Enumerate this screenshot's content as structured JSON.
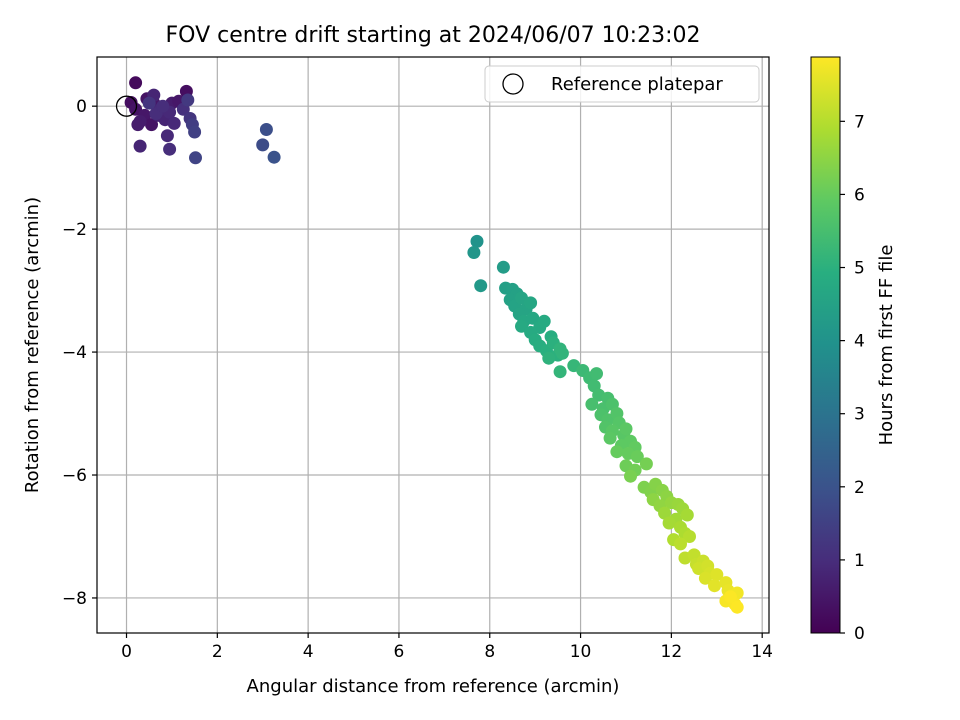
{
  "chart_data": {
    "type": "scatter",
    "title": "FOV centre drift starting at 2024/06/07 10:23:02",
    "xlabel": "Angular distance from reference (arcmin)",
    "ylabel": "Rotation from reference (arcmin)",
    "xlim": [
      -0.65,
      14.15
    ],
    "ylim": [
      -8.57,
      0.8
    ],
    "xticks": [
      0,
      2,
      4,
      6,
      8,
      10,
      12,
      14
    ],
    "yticks": [
      0,
      -2,
      -4,
      -6,
      -8
    ],
    "xtick_labels": [
      "0",
      "2",
      "4",
      "6",
      "8",
      "10",
      "12",
      "14"
    ],
    "ytick_labels": [
      "0",
      "−2",
      "−4",
      "−6",
      "−8"
    ],
    "grid": true,
    "colorscale": "viridis",
    "colorbar": {
      "label": "Hours from first FF file",
      "range": [
        0,
        7.88
      ],
      "ticks": [
        0,
        1,
        2,
        3,
        4,
        5,
        6,
        7
      ],
      "tick_labels": [
        "0",
        "1",
        "2",
        "3",
        "4",
        "5",
        "6",
        "7"
      ]
    },
    "legend": {
      "placement": "top-right",
      "entries": [
        {
          "label": "Reference platepar",
          "marker": "open-circle"
        }
      ]
    },
    "reference": {
      "x": 0.0,
      "y": 0.0
    },
    "points": [
      [
        0.2,
        0.38,
        0.2
      ],
      [
        1.32,
        0.24,
        0.3
      ],
      [
        0.1,
        0.06,
        0.3
      ],
      [
        0.45,
        0.12,
        0.4
      ],
      [
        0.6,
        0.05,
        0.5
      ],
      [
        0.2,
        -0.05,
        0.4
      ],
      [
        0.4,
        -0.15,
        0.5
      ],
      [
        0.55,
        -0.3,
        0.4
      ],
      [
        1.0,
        0.05,
        0.6
      ],
      [
        1.15,
        0.08,
        0.5
      ],
      [
        0.3,
        -0.25,
        0.6
      ],
      [
        0.25,
        -0.3,
        0.6
      ],
      [
        0.7,
        -0.15,
        0.7
      ],
      [
        0.85,
        -0.22,
        0.8
      ],
      [
        0.6,
        0.18,
        0.8
      ],
      [
        0.75,
        -0.05,
        0.9
      ],
      [
        0.95,
        -0.1,
        0.9
      ],
      [
        1.05,
        -0.28,
        0.9
      ],
      [
        0.3,
        -0.65,
        0.8
      ],
      [
        0.9,
        -0.48,
        0.9
      ],
      [
        0.65,
        -0.12,
        1.0
      ],
      [
        0.8,
        0.0,
        1.0
      ],
      [
        0.95,
        -0.7,
        1.0
      ],
      [
        1.25,
        -0.05,
        1.1
      ],
      [
        1.4,
        -0.2,
        1.2
      ],
      [
        0.5,
        0.05,
        1.2
      ],
      [
        1.35,
        0.1,
        1.3
      ],
      [
        1.45,
        -0.3,
        1.4
      ],
      [
        1.5,
        -0.42,
        1.5
      ],
      [
        1.52,
        -0.84,
        1.6
      ],
      [
        3.0,
        -0.63,
        1.8
      ],
      [
        3.08,
        -0.38,
        1.9
      ],
      [
        3.25,
        -0.83,
        2.0
      ],
      [
        7.72,
        -2.2,
        4.0
      ],
      [
        7.65,
        -2.38,
        4.1
      ],
      [
        7.8,
        -2.92,
        4.2
      ],
      [
        8.3,
        -2.62,
        4.3
      ],
      [
        8.35,
        -2.96,
        4.4
      ],
      [
        8.5,
        -2.98,
        4.45
      ],
      [
        8.6,
        -3.05,
        4.5
      ],
      [
        8.45,
        -3.15,
        4.5
      ],
      [
        8.55,
        -3.25,
        4.55
      ],
      [
        8.7,
        -3.12,
        4.6
      ],
      [
        8.8,
        -3.3,
        4.6
      ],
      [
        8.65,
        -3.38,
        4.6
      ],
      [
        8.9,
        -3.2,
        4.65
      ],
      [
        8.75,
        -3.5,
        4.7
      ],
      [
        8.95,
        -3.45,
        4.7
      ],
      [
        9.1,
        -3.6,
        4.75
      ],
      [
        8.7,
        -3.58,
        4.75
      ],
      [
        8.9,
        -3.68,
        4.8
      ],
      [
        9.2,
        -3.5,
        4.8
      ],
      [
        9.0,
        -3.8,
        4.85
      ],
      [
        9.35,
        -3.75,
        4.9
      ],
      [
        9.1,
        -3.9,
        4.9
      ],
      [
        9.25,
        -3.98,
        4.95
      ],
      [
        9.4,
        -3.85,
        5.0
      ],
      [
        9.5,
        -4.05,
        5.0
      ],
      [
        9.3,
        -4.1,
        5.05
      ],
      [
        9.55,
        -3.95,
        5.1
      ],
      [
        9.6,
        -4.02,
        5.1
      ],
      [
        9.55,
        -4.32,
        5.15
      ],
      [
        9.85,
        -4.22,
        5.2
      ],
      [
        10.05,
        -4.3,
        5.3
      ],
      [
        10.2,
        -4.42,
        5.35
      ],
      [
        10.35,
        -4.35,
        5.4
      ],
      [
        10.3,
        -4.55,
        5.4
      ],
      [
        10.4,
        -4.7,
        5.45
      ],
      [
        10.25,
        -4.85,
        5.5
      ],
      [
        10.6,
        -4.75,
        5.5
      ],
      [
        10.5,
        -4.92,
        5.55
      ],
      [
        10.7,
        -4.85,
        5.6
      ],
      [
        10.45,
        -5.02,
        5.6
      ],
      [
        10.6,
        -5.1,
        5.65
      ],
      [
        10.8,
        -5.0,
        5.7
      ],
      [
        10.55,
        -5.22,
        5.7
      ],
      [
        10.85,
        -5.15,
        5.75
      ],
      [
        10.7,
        -5.28,
        5.8
      ],
      [
        10.95,
        -5.35,
        5.8
      ],
      [
        11.0,
        -5.25,
        5.85
      ],
      [
        10.65,
        -5.4,
        5.85
      ],
      [
        11.1,
        -5.45,
        5.9
      ],
      [
        10.9,
        -5.52,
        5.9
      ],
      [
        11.2,
        -5.55,
        5.95
      ],
      [
        10.8,
        -5.62,
        6.0
      ],
      [
        11.05,
        -5.65,
        6.0
      ],
      [
        11.25,
        -5.7,
        6.05
      ],
      [
        11.0,
        -5.85,
        6.1
      ],
      [
        11.2,
        -5.92,
        6.15
      ],
      [
        11.45,
        -5.82,
        6.2
      ],
      [
        11.1,
        -6.02,
        6.25
      ],
      [
        11.4,
        -6.2,
        6.3
      ],
      [
        11.55,
        -6.28,
        6.35
      ],
      [
        11.65,
        -6.15,
        6.4
      ],
      [
        11.8,
        -6.25,
        6.45
      ],
      [
        11.6,
        -6.4,
        6.5
      ],
      [
        11.9,
        -6.35,
        6.5
      ],
      [
        11.75,
        -6.5,
        6.55
      ],
      [
        12.0,
        -6.45,
        6.6
      ],
      [
        12.15,
        -6.48,
        6.65
      ],
      [
        11.85,
        -6.62,
        6.7
      ],
      [
        12.25,
        -6.55,
        6.7
      ],
      [
        12.1,
        -6.72,
        6.75
      ],
      [
        11.95,
        -6.78,
        6.8
      ],
      [
        12.35,
        -6.65,
        6.8
      ],
      [
        12.2,
        -6.85,
        6.85
      ],
      [
        12.3,
        -6.95,
        6.9
      ],
      [
        12.05,
        -7.05,
        6.95
      ],
      [
        12.4,
        -7.0,
        7.0
      ],
      [
        12.2,
        -7.12,
        7.05
      ],
      [
        12.3,
        -7.35,
        7.1
      ],
      [
        12.5,
        -7.3,
        7.15
      ],
      [
        12.55,
        -7.45,
        7.2
      ],
      [
        12.7,
        -7.4,
        7.25
      ],
      [
        12.6,
        -7.52,
        7.3
      ],
      [
        12.8,
        -7.48,
        7.35
      ],
      [
        12.85,
        -7.6,
        7.4
      ],
      [
        12.75,
        -7.68,
        7.45
      ],
      [
        13.0,
        -7.62,
        7.5
      ],
      [
        12.95,
        -7.8,
        7.55
      ],
      [
        13.2,
        -7.75,
        7.6
      ],
      [
        13.25,
        -7.88,
        7.65
      ],
      [
        13.35,
        -7.95,
        7.7
      ],
      [
        13.45,
        -7.92,
        7.75
      ],
      [
        13.2,
        -8.05,
        7.8
      ],
      [
        13.4,
        -8.1,
        7.83
      ],
      [
        13.3,
        -7.98,
        7.85
      ],
      [
        13.45,
        -8.15,
        7.88
      ]
    ]
  }
}
